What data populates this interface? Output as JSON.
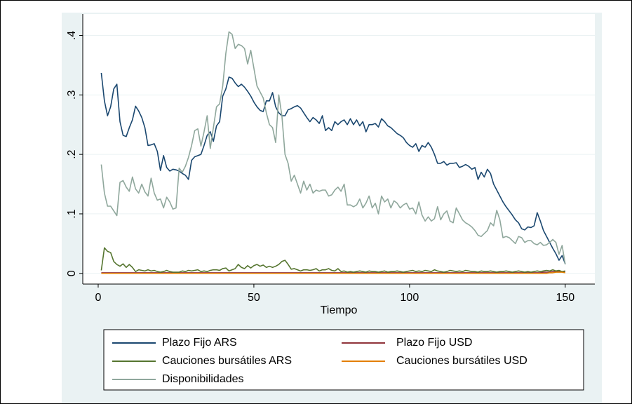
{
  "chart_data": {
    "type": "line",
    "x_label": "Tiempo",
    "x": [
      1,
      2,
      3,
      4,
      5,
      6,
      7,
      8,
      9,
      10,
      11,
      12,
      13,
      14,
      15,
      16,
      17,
      18,
      19,
      20,
      21,
      22,
      23,
      24,
      25,
      26,
      27,
      28,
      29,
      30,
      31,
      32,
      33,
      34,
      35,
      36,
      37,
      38,
      39,
      40,
      41,
      42,
      43,
      44,
      45,
      46,
      47,
      48,
      49,
      50,
      51,
      52,
      53,
      54,
      55,
      56,
      57,
      58,
      59,
      60,
      61,
      62,
      63,
      64,
      65,
      66,
      67,
      68,
      69,
      70,
      71,
      72,
      73,
      74,
      75,
      76,
      77,
      78,
      79,
      80,
      81,
      82,
      83,
      84,
      85,
      86,
      87,
      88,
      89,
      90,
      91,
      92,
      93,
      94,
      95,
      96,
      97,
      98,
      99,
      100,
      101,
      102,
      103,
      104,
      105,
      106,
      107,
      108,
      109,
      110,
      111,
      112,
      113,
      114,
      115,
      116,
      117,
      118,
      119,
      120,
      121,
      122,
      123,
      124,
      125,
      126,
      127,
      128,
      129,
      130,
      131,
      132,
      133,
      134,
      135,
      136,
      137,
      138,
      139,
      140,
      141,
      142,
      143,
      144,
      145,
      146,
      147,
      148,
      149,
      150
    ],
    "series": [
      {
        "name": "Plazo Fijo ARS",
        "color": "#1a476f",
        "values": [
          0.337,
          0.29,
          0.265,
          0.28,
          0.31,
          0.318,
          0.255,
          0.232,
          0.23,
          0.245,
          0.258,
          0.281,
          0.273,
          0.262,
          0.245,
          0.215,
          0.216,
          0.218,
          0.205,
          0.173,
          0.198,
          0.178,
          0.172,
          0.175,
          0.174,
          0.172,
          0.168,
          0.165,
          0.158,
          0.19,
          0.196,
          0.198,
          0.2,
          0.215,
          0.232,
          0.238,
          0.222,
          0.248,
          0.255,
          0.298,
          0.31,
          0.33,
          0.328,
          0.32,
          0.314,
          0.318,
          0.313,
          0.306,
          0.298,
          0.288,
          0.28,
          0.274,
          0.272,
          0.29,
          0.29,
          0.304,
          0.28,
          0.27,
          0.265,
          0.265,
          0.275,
          0.277,
          0.28,
          0.282,
          0.278,
          0.27,
          0.262,
          0.255,
          0.262,
          0.258,
          0.252,
          0.265,
          0.24,
          0.245,
          0.24,
          0.255,
          0.25,
          0.255,
          0.258,
          0.25,
          0.26,
          0.25,
          0.258,
          0.248,
          0.255,
          0.238,
          0.25,
          0.25,
          0.252,
          0.246,
          0.26,
          0.255,
          0.248,
          0.245,
          0.24,
          0.235,
          0.232,
          0.228,
          0.22,
          0.215,
          0.212,
          0.218,
          0.205,
          0.215,
          0.212,
          0.22,
          0.212,
          0.2,
          0.185,
          0.185,
          0.188,
          0.182,
          0.185,
          0.185,
          0.186,
          0.178,
          0.18,
          0.183,
          0.18,
          0.175,
          0.178,
          0.158,
          0.17,
          0.162,
          0.175,
          0.168,
          0.15,
          0.14,
          0.13,
          0.12,
          0.112,
          0.105,
          0.098,
          0.09,
          0.085,
          0.075,
          0.073,
          0.078,
          0.077,
          0.08,
          0.102,
          0.088,
          0.072,
          0.062,
          0.052,
          0.042,
          0.033,
          0.022,
          0.03,
          0.016
        ]
      },
      {
        "name": "Plazo Fijo USD",
        "color": "#90353b",
        "values": [
          0.001,
          0.001,
          0.001,
          0.001,
          0.001,
          0.001,
          0.001,
          0.001,
          0.001,
          0.001,
          0.001,
          0.001,
          0.001,
          0.001,
          0.001,
          0.001,
          0.001,
          0.001,
          0.001,
          0.001,
          0.001,
          0.001,
          0.001,
          0.001,
          0.001,
          0.001,
          0.001,
          0.001,
          0.001,
          0.001,
          0.001,
          0.001,
          0.001,
          0.001,
          0.001,
          0.001,
          0.001,
          0.001,
          0.001,
          0.001,
          0.001,
          0.001,
          0.001,
          0.001,
          0.001,
          0.001,
          0.001,
          0.001,
          0.001,
          0.001,
          0.001,
          0.001,
          0.001,
          0.001,
          0.001,
          0.001,
          0.001,
          0.001,
          0.001,
          0.001,
          0.001,
          0.001,
          0.001,
          0.001,
          0.001,
          0.001,
          0.001,
          0.001,
          0.001,
          0.001,
          0.001,
          0.001,
          0.001,
          0.001,
          0.001,
          0.001,
          0.001,
          0.001,
          0.001,
          0.001,
          0.001,
          0.001,
          0.001,
          0.001,
          0.001,
          0.001,
          0.001,
          0.001,
          0.001,
          0.001,
          0.001,
          0.001,
          0.001,
          0.001,
          0.001,
          0.001,
          0.001,
          0.001,
          0.001,
          0.001,
          0.001,
          0.001,
          0.001,
          0.001,
          0.001,
          0.001,
          0.001,
          0.001,
          0.001,
          0.001,
          0.001,
          0.001,
          0.001,
          0.001,
          0.001,
          0.001,
          0.001,
          0.001,
          0.001,
          0.001,
          0.001,
          0.001,
          0.001,
          0.001,
          0.001,
          0.001,
          0.001,
          0.001,
          0.001,
          0.001,
          0.001,
          0.001,
          0.001,
          0.001,
          0.001,
          0.001,
          0.001,
          0.001,
          0.001,
          0.001,
          0.001,
          0.001,
          0.002,
          0.002,
          0.002,
          0.003,
          0.003,
          0.003,
          0.003,
          0.003
        ]
      },
      {
        "name": "Cauciones bursátiles ARS",
        "color": "#55752f",
        "values": [
          0.005,
          0.043,
          0.037,
          0.035,
          0.02,
          0.015,
          0.012,
          0.016,
          0.01,
          0.015,
          0.01,
          0.003,
          0.006,
          0.005,
          0.004,
          0.006,
          0.004,
          0.005,
          0.003,
          0.002,
          0.003,
          0.005,
          0.003,
          0.002,
          0.002,
          0.002,
          0.004,
          0.003,
          0.005,
          0.004,
          0.005,
          0.006,
          0.003,
          0.004,
          0.003,
          0.005,
          0.006,
          0.006,
          0.005,
          0.008,
          0.009,
          0.004,
          0.006,
          0.008,
          0.015,
          0.01,
          0.008,
          0.013,
          0.009,
          0.013,
          0.015,
          0.012,
          0.014,
          0.01,
          0.012,
          0.01,
          0.012,
          0.015,
          0.02,
          0.022,
          0.015,
          0.007,
          0.008,
          0.006,
          0.004,
          0.006,
          0.006,
          0.005,
          0.006,
          0.008,
          0.004,
          0.006,
          0.006,
          0.008,
          0.005,
          0.004,
          0.008,
          0.003,
          0.004,
          0.002,
          0.003,
          0.002,
          0.003,
          0.004,
          0.003,
          0.002,
          0.004,
          0.003,
          0.003,
          0.002,
          0.003,
          0.004,
          0.002,
          0.003,
          0.003,
          0.004,
          0.003,
          0.002,
          0.003,
          0.004,
          0.005,
          0.003,
          0.004,
          0.003,
          0.005,
          0.004,
          0.003,
          0.006,
          0.004,
          0.003,
          0.002,
          0.003,
          0.005,
          0.004,
          0.003,
          0.004,
          0.003,
          0.005,
          0.004,
          0.003,
          0.003,
          0.002,
          0.004,
          0.003,
          0.003,
          0.004,
          0.003,
          0.002,
          0.003,
          0.003,
          0.004,
          0.003,
          0.002,
          0.003,
          0.004,
          0.003,
          0.002,
          0.003,
          0.002,
          0.003,
          0.004,
          0.003,
          0.004,
          0.005,
          0.004,
          0.006,
          0.004,
          0.005,
          0.003,
          0.004
        ]
      },
      {
        "name": "Cauciones bursátiles USD",
        "color": "#e37e00",
        "values": [
          0,
          0,
          0,
          0,
          0,
          0,
          0,
          0,
          0,
          0,
          0,
          0,
          0,
          0,
          0,
          0,
          0,
          0,
          0,
          0,
          0,
          0,
          0,
          0,
          0,
          0,
          0,
          0,
          0,
          0,
          0,
          0,
          0,
          0,
          0,
          0,
          0,
          0,
          0,
          0,
          0,
          0,
          0,
          0,
          0,
          0,
          0,
          0,
          0,
          0,
          0,
          0,
          0,
          0,
          0,
          0,
          0,
          0,
          0,
          0,
          0,
          0,
          0,
          0,
          0,
          0,
          0,
          0,
          0,
          0,
          0,
          0,
          0,
          0,
          0,
          0,
          0,
          0,
          0,
          0,
          0,
          0,
          0,
          0,
          0,
          0,
          0,
          0,
          0,
          0,
          0,
          0,
          0,
          0,
          0,
          0,
          0,
          0,
          0,
          0,
          0,
          0,
          0,
          0,
          0,
          0,
          0,
          0,
          0,
          0,
          0,
          0,
          0,
          0,
          0,
          0,
          0,
          0,
          0,
          0,
          0,
          0,
          0,
          0,
          0,
          0,
          0,
          0,
          0,
          0,
          0,
          0,
          0,
          0,
          0,
          0,
          0,
          0,
          0,
          0,
          0,
          0,
          0,
          0,
          0.001,
          0.001,
          0.002,
          0.002,
          0.002,
          0.001
        ]
      },
      {
        "name": "Disponibilidades",
        "color": "#8fa79c",
        "values": [
          0.183,
          0.135,
          0.113,
          0.113,
          0.105,
          0.097,
          0.153,
          0.156,
          0.145,
          0.138,
          0.162,
          0.142,
          0.135,
          0.15,
          0.137,
          0.13,
          0.16,
          0.135,
          0.123,
          0.125,
          0.11,
          0.128,
          0.12,
          0.108,
          0.11,
          0.177,
          0.17,
          0.18,
          0.195,
          0.215,
          0.24,
          0.243,
          0.214,
          0.238,
          0.265,
          0.21,
          0.245,
          0.28,
          0.285,
          0.315,
          0.37,
          0.406,
          0.402,
          0.378,
          0.385,
          0.383,
          0.378,
          0.352,
          0.375,
          0.345,
          0.315,
          0.305,
          0.295,
          0.27,
          0.25,
          0.245,
          0.22,
          0.3,
          0.265,
          0.2,
          0.185,
          0.155,
          0.165,
          0.15,
          0.135,
          0.155,
          0.14,
          0.15,
          0.135,
          0.14,
          0.138,
          0.14,
          0.14,
          0.13,
          0.132,
          0.14,
          0.145,
          0.138,
          0.15,
          0.115,
          0.115,
          0.112,
          0.115,
          0.125,
          0.11,
          0.118,
          0.13,
          0.11,
          0.118,
          0.1,
          0.13,
          0.12,
          0.125,
          0.11,
          0.122,
          0.118,
          0.11,
          0.115,
          0.118,
          0.108,
          0.11,
          0.1,
          0.12,
          0.098,
          0.088,
          0.095,
          0.088,
          0.092,
          0.112,
          0.09,
          0.1,
          0.105,
          0.088,
          0.085,
          0.11,
          0.1,
          0.09,
          0.085,
          0.082,
          0.078,
          0.072,
          0.064,
          0.062,
          0.067,
          0.072,
          0.085,
          0.08,
          0.106,
          0.09,
          0.06,
          0.062,
          0.06,
          0.055,
          0.05,
          0.062,
          0.06,
          0.052,
          0.055,
          0.055,
          0.05,
          0.048,
          0.052,
          0.047,
          0.048,
          0.052,
          0.057,
          0.052,
          0.032,
          0.047,
          0.015
        ]
      }
    ],
    "xlim": [
      -4.95,
      159.5
    ],
    "ylim": [
      -0.018,
      0.436
    ],
    "xticks": [
      0,
      50,
      100,
      150
    ],
    "yticks": [
      0,
      {
        "value": 0.1,
        "label": ".1"
      },
      {
        "value": 0.2,
        "label": ".2"
      },
      {
        "value": 0.3,
        "label": ".3"
      },
      {
        "value": 0.4,
        "label": ".4"
      }
    ],
    "grid": true
  }
}
